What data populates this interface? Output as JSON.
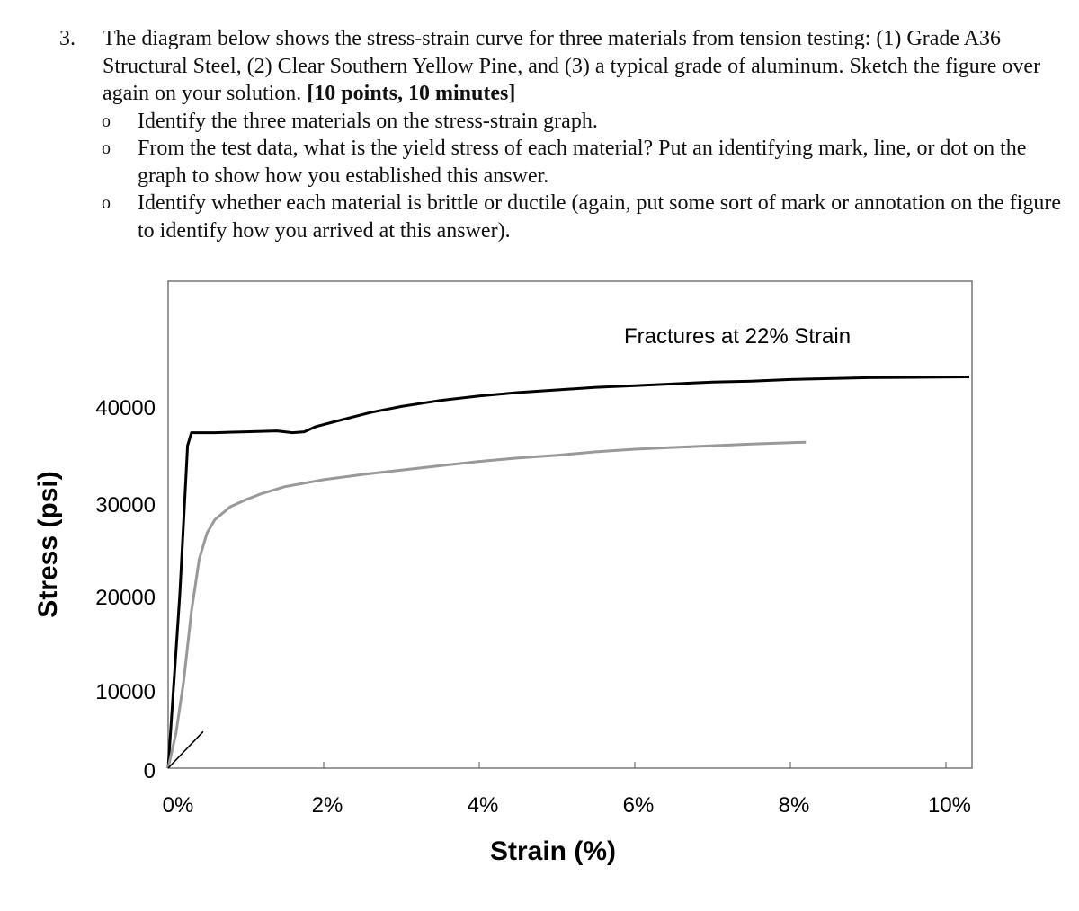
{
  "question": {
    "number": "3.",
    "stem": "The diagram below shows the stress-strain curve for three materials from tension testing: (1) Grade A36 Structural Steel, (2) Clear Southern Yellow Pine, and (3) a typical grade of aluminum. Sketch the figure over again on your solution.",
    "points": "[10 points, 10 minutes]",
    "bullet_mark": "o",
    "bullets": [
      "Identify the three materials on the stress-strain graph.",
      "From the test data, what is the yield stress of each material? Put an identifying mark, line, or dot on the graph to show how you established this answer.",
      "Identify whether each material is brittle or ductile (again, put some sort of mark or annotation on the figure to identify how you arrived at this answer)."
    ]
  },
  "chart_data": {
    "type": "line",
    "title": "",
    "xlabel": "Strain (%)",
    "ylabel": "Stress (psi)",
    "xlim": [
      0,
      10
    ],
    "ylim": [
      0,
      45000
    ],
    "x_ticks": [
      "0%",
      "2%",
      "4%",
      "6%",
      "8%",
      "10%"
    ],
    "y_ticks": [
      "0",
      "10000",
      "20000",
      "30000",
      "40000"
    ],
    "grid": false,
    "annotations": [
      {
        "text": "Fractures at 22% Strain"
      }
    ],
    "series": [
      {
        "color": "#000000",
        "x": [
          0.0,
          0.15,
          0.25,
          0.3,
          0.6,
          1.0,
          1.4,
          1.6,
          1.75,
          1.9,
          2.2,
          2.6,
          3.0,
          3.5,
          4.0,
          4.5,
          5.0,
          5.5,
          6.0,
          6.5,
          7.0,
          7.5,
          8.0,
          9.0,
          10.3
        ],
        "y": [
          0,
          20000,
          37000,
          38500,
          38500,
          38600,
          38700,
          38500,
          38600,
          39200,
          39900,
          40800,
          41500,
          42200,
          42700,
          43100,
          43400,
          43700,
          43900,
          44100,
          44300,
          44400,
          44600,
          44800,
          44900
        ]
      },
      {
        "color": "#999999",
        "x": [
          0.0,
          0.1,
          0.2,
          0.3,
          0.4,
          0.5,
          0.6,
          0.8,
          1.0,
          1.2,
          1.5,
          2.0,
          2.5,
          3.0,
          3.5,
          4.0,
          4.5,
          5.0,
          5.5,
          6.0,
          6.5,
          7.0,
          7.5,
          8.2
        ],
        "y": [
          0,
          4000,
          10000,
          18000,
          24000,
          27000,
          28500,
          30000,
          30800,
          31500,
          32300,
          33100,
          33700,
          34200,
          34700,
          35200,
          35600,
          35900,
          36300,
          36600,
          36800,
          37000,
          37200,
          37400
        ]
      },
      {
        "color": "#000000",
        "x": [
          0.0,
          0.45
        ],
        "y": [
          0,
          4200
        ]
      }
    ]
  }
}
